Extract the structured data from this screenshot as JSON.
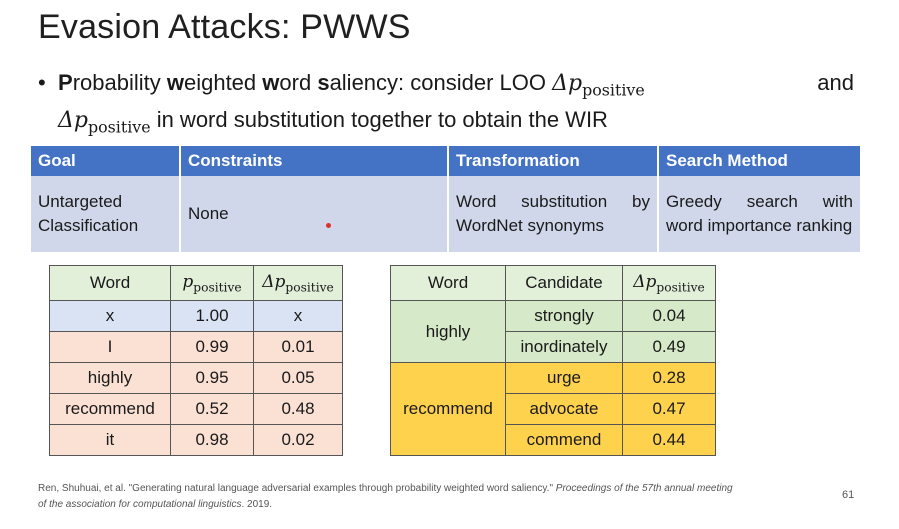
{
  "slide": {
    "title": "Evasion Attacks: PWWS",
    "page_number": "61"
  },
  "bullet": {
    "p1": "P",
    "t1": "robability ",
    "w1": "w",
    "t2": "eighted ",
    "w2": "w",
    "t3": "ord ",
    "s1": "s",
    "t4": "aliency: consider LOO",
    "delta": "Δp",
    "sub": "positive",
    "and": "and",
    "line2_text": " in word substitution together to obtain the WIR"
  },
  "main_table": {
    "headers": [
      "Goal",
      "Constraints",
      "Transformation",
      "Search Method"
    ],
    "row": [
      "Untargeted Classification",
      "None",
      "Word substitution by WordNet synonyms",
      "Greedy search with word importance ranking"
    ]
  },
  "left_table": {
    "headers": {
      "word": "Word",
      "p": "p",
      "p_sub": "positive",
      "dp": "Δp",
      "dp_sub": "positive"
    },
    "rows": [
      {
        "word": "x",
        "p": "1.00",
        "dp": "x"
      },
      {
        "word": "I",
        "p": "0.99",
        "dp": "0.01"
      },
      {
        "word": "highly",
        "p": "0.95",
        "dp": "0.05"
      },
      {
        "word": "recommend",
        "p": "0.52",
        "dp": "0.48"
      },
      {
        "word": "it",
        "p": "0.98",
        "dp": "0.02"
      }
    ]
  },
  "right_table": {
    "headers": {
      "word": "Word",
      "candidate": "Candidate",
      "dp": "Δp",
      "dp_sub": "positive"
    },
    "groups": [
      {
        "word": "highly",
        "rows": [
          {
            "candidate": "strongly",
            "dp": "0.04"
          },
          {
            "candidate": "inordinately",
            "dp": "0.49"
          }
        ]
      },
      {
        "word": "recommend",
        "rows": [
          {
            "candidate": "urge",
            "dp": "0.28"
          },
          {
            "candidate": "advocate",
            "dp": "0.47"
          },
          {
            "candidate": "commend",
            "dp": "0.44"
          }
        ]
      }
    ]
  },
  "citation": {
    "main": "Ren, Shuhuai, et al. \"Generating natural language adversarial examples through probability weighted word saliency.\" ",
    "italic": "Proceedings of the 57th annual meeting of the association for computational linguistics",
    "tail": ". 2019."
  }
}
